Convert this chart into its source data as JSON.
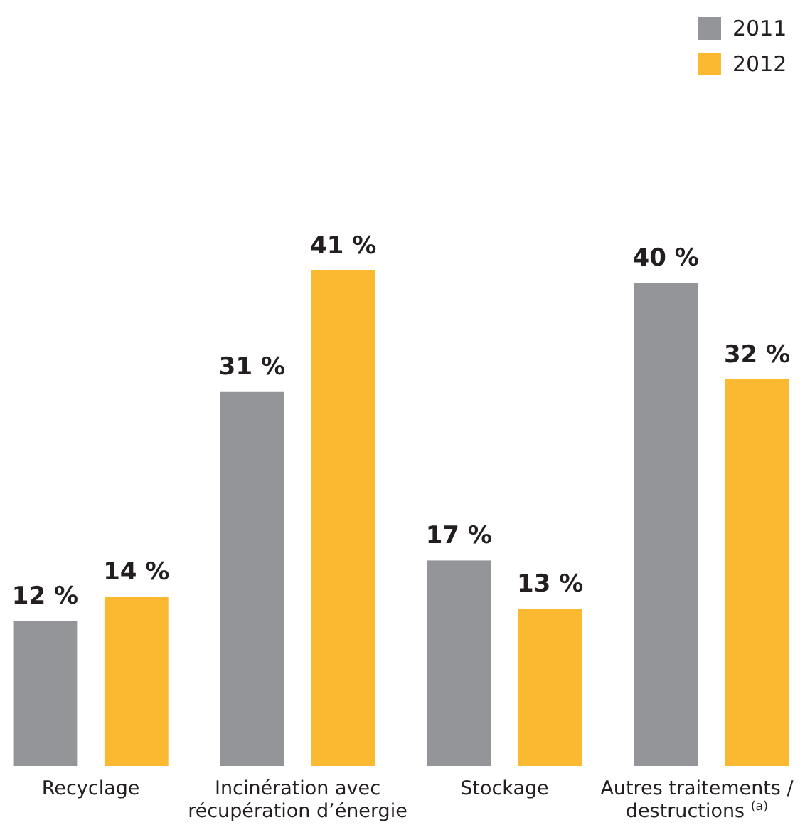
{
  "chart_data": {
    "type": "bar",
    "categories": [
      "Recyclage",
      "Incinération avec récupération d’énergie",
      "Stockage",
      "Autres traitements / destructions $^{(a)}$"
    ],
    "series": [
      {
        "name": "2011",
        "color": "#939598",
        "values": [
          12,
          31,
          17,
          40
        ],
        "value_labels": [
          "12 %",
          "31 %",
          "17 %",
          "40 %"
        ]
      },
      {
        "name": "2012",
        "color": "#fbb931",
        "values": [
          14,
          41,
          13,
          32
        ],
        "value_labels": [
          "14 %",
          "41 %",
          "13 %",
          "32 %"
        ]
      }
    ],
    "legend": "top right"
  }
}
